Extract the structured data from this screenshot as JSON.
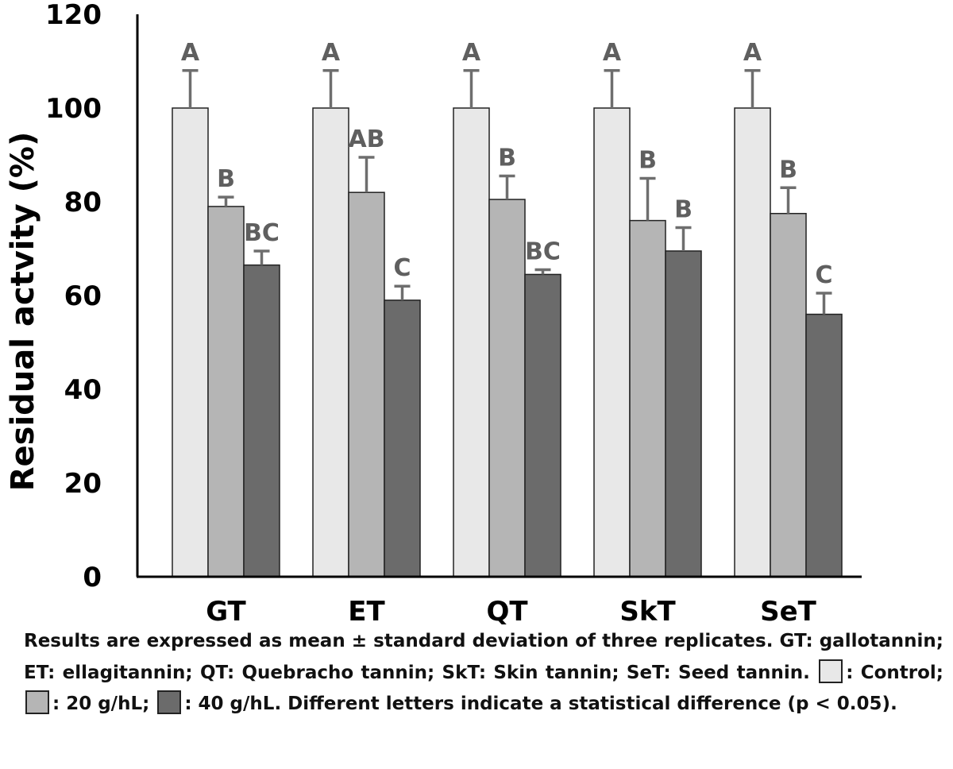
{
  "chart_data": {
    "type": "bar",
    "title": "",
    "xlabel": "",
    "ylabel": "Residual actvity (%)",
    "ylim": [
      0,
      120
    ],
    "yticks": [
      "0",
      "20",
      "40",
      "60",
      "80",
      "100",
      "120"
    ],
    "categories": [
      "GT",
      "ET",
      "QT",
      "SkT",
      "SeT"
    ],
    "series": [
      {
        "name": "Control",
        "color": "#e8e8e8",
        "values": [
          100,
          100,
          100,
          100,
          100
        ],
        "errors": [
          8,
          8,
          8,
          8,
          8
        ],
        "letters": [
          "A",
          "A",
          "A",
          "A",
          "A"
        ]
      },
      {
        "name": "20 g/hL",
        "color": "#b5b5b5",
        "values": [
          79,
          82,
          80.5,
          76,
          77.5
        ],
        "errors": [
          2,
          7.5,
          5,
          9,
          5.5
        ],
        "letters": [
          "B",
          "AB",
          "B",
          "B",
          "B"
        ]
      },
      {
        "name": "40 g/hL",
        "color": "#6b6b6b",
        "values": [
          66.5,
          59,
          64.5,
          69.5,
          56
        ],
        "errors": [
          3,
          3,
          1,
          5,
          4.5
        ],
        "letters": [
          "BC",
          "C",
          "BC",
          "B",
          "C"
        ]
      }
    ],
    "grid": false,
    "legend": "caption"
  },
  "caption": {
    "part1": "Results are expressed as mean ± standard deviation of three replicates. GT: gallotannin; ET: ellagitannin; QT: Quebracho tannin; SkT: Skin tannin; SeT: Seed tannin.",
    "control_label": ": Control;",
    "g20_label": ": 20 g/hL;",
    "g40_label": ": 40 g/hL. Different letters indicate a statistical difference (p < 0.05)."
  }
}
